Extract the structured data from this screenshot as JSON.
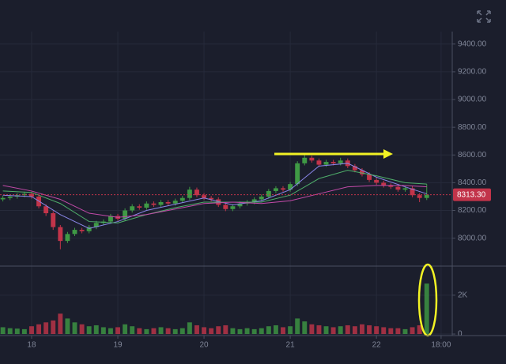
{
  "chart_data": {
    "type": "candlestick",
    "x": [
      -8,
      -6,
      -4,
      -2,
      0,
      2,
      4,
      6,
      8,
      10,
      12,
      14,
      16,
      18,
      20,
      22,
      24,
      26,
      28,
      30,
      32,
      34,
      36,
      38,
      40,
      42,
      44,
      46,
      48,
      50,
      52,
      54,
      56,
      58,
      60,
      62,
      64,
      66,
      68,
      70,
      72,
      74,
      76,
      78,
      80,
      82,
      84,
      86,
      88,
      90,
      92,
      94,
      96,
      98,
      100,
      102,
      104,
      106,
      108,
      110
    ],
    "open": [
      8280,
      8290,
      8300,
      8310,
      8320,
      8300,
      8230,
      8180,
      8080,
      7980,
      8030,
      8060,
      8050,
      8080,
      8110,
      8120,
      8160,
      8140,
      8200,
      8230,
      8220,
      8250,
      8240,
      8260,
      8250,
      8270,
      8290,
      8350,
      8310,
      8290,
      8280,
      8240,
      8210,
      8230,
      8250,
      8260,
      8280,
      8300,
      8340,
      8360,
      8350,
      8390,
      8540,
      8580,
      8560,
      8530,
      8550,
      8540,
      8560,
      8520,
      8490,
      8460,
      8420,
      8400,
      8380,
      8370,
      8350,
      8360,
      8310,
      8290
    ],
    "high": [
      8305,
      8315,
      8325,
      8335,
      8335,
      8315,
      8245,
      8195,
      8095,
      8045,
      8075,
      8075,
      8095,
      8125,
      8135,
      8175,
      8175,
      8215,
      8245,
      8245,
      8265,
      8265,
      8275,
      8275,
      8285,
      8305,
      8370,
      8365,
      8325,
      8305,
      8295,
      8255,
      8245,
      8265,
      8275,
      8295,
      8315,
      8355,
      8375,
      8375,
      8405,
      8555,
      8600,
      8595,
      8575,
      8565,
      8565,
      8580,
      8575,
      8535,
      8505,
      8475,
      8435,
      8415,
      8395,
      8385,
      8375,
      8375,
      8325,
      8390
    ],
    "low": [
      8265,
      8275,
      8285,
      8295,
      8285,
      8215,
      8160,
      8060,
      7920,
      7965,
      8015,
      8035,
      8035,
      8065,
      8095,
      8105,
      8125,
      8125,
      8185,
      8205,
      8205,
      8225,
      8225,
      8235,
      8235,
      8255,
      8275,
      8295,
      8275,
      8265,
      8225,
      8195,
      8195,
      8215,
      8235,
      8245,
      8265,
      8285,
      8325,
      8335,
      8335,
      8375,
      8525,
      8545,
      8515,
      8515,
      8525,
      8525,
      8505,
      8475,
      8445,
      8405,
      8385,
      8365,
      8355,
      8335,
      8335,
      8295,
      8260,
      8275
    ],
    "close": [
      8290,
      8300,
      8310,
      8320,
      8300,
      8230,
      8180,
      8080,
      7980,
      8030,
      8060,
      8050,
      8080,
      8110,
      8120,
      8160,
      8140,
      8200,
      8230,
      8220,
      8250,
      8240,
      8260,
      8250,
      8270,
      8290,
      8350,
      8310,
      8290,
      8280,
      8240,
      8210,
      8230,
      8250,
      8260,
      8280,
      8300,
      8340,
      8360,
      8350,
      8390,
      8540,
      8580,
      8560,
      8530,
      8550,
      8540,
      8560,
      8520,
      8490,
      8460,
      8420,
      8400,
      8380,
      8370,
      8350,
      8360,
      8310,
      8290,
      8313.3
    ],
    "volume": [
      350,
      300,
      280,
      250,
      400,
      500,
      600,
      700,
      1050,
      800,
      600,
      500,
      400,
      450,
      350,
      300,
      350,
      500,
      400,
      300,
      250,
      300,
      350,
      300,
      250,
      300,
      600,
      450,
      350,
      300,
      400,
      450,
      300,
      250,
      300,
      250,
      300,
      400,
      450,
      350,
      400,
      800,
      650,
      500,
      450,
      400,
      350,
      400,
      450,
      400,
      500,
      450,
      400,
      350,
      300,
      300,
      250,
      350,
      450,
      2600
    ],
    "up_color": "#3f9a45",
    "down_color": "#c2344a",
    "moving_averages": [
      {
        "color": "#8a86e8",
        "x": [
          -8,
          0,
          8,
          16,
          24,
          32,
          40,
          48,
          56,
          64,
          72,
          80,
          88,
          96,
          104,
          110
        ],
        "values": [
          8310,
          8300,
          8170,
          8070,
          8120,
          8200,
          8245,
          8290,
          8240,
          8270,
          8350,
          8520,
          8540,
          8440,
          8370,
          8320
        ]
      },
      {
        "color": "#4fae6a",
        "x": [
          -8,
          0,
          8,
          16,
          24,
          32,
          40,
          48,
          56,
          64,
          72,
          80,
          88,
          96,
          104,
          110
        ],
        "values": [
          8340,
          8330,
          8250,
          8120,
          8110,
          8170,
          8220,
          8260,
          8260,
          8260,
          8310,
          8430,
          8490,
          8450,
          8400,
          8390
        ]
      },
      {
        "color": "#c24aa8",
        "x": [
          -8,
          0,
          8,
          16,
          24,
          32,
          40,
          48,
          56,
          64,
          72,
          80,
          88,
          96,
          104,
          110
        ],
        "values": [
          8380,
          8340,
          8280,
          8180,
          8150,
          8170,
          8210,
          8250,
          8260,
          8250,
          8270,
          8320,
          8370,
          8380,
          8380,
          8370
        ]
      }
    ],
    "last_price": {
      "value": 8313.3,
      "label": "8313.30"
    },
    "xlim": [
      -8.8,
      117.1
    ],
    "xticks": [
      {
        "value": 0,
        "label": "18"
      },
      {
        "value": 24,
        "label": "19"
      },
      {
        "value": 48,
        "label": "20"
      },
      {
        "value": 72,
        "label": "21"
      },
      {
        "value": 96,
        "label": "22"
      },
      {
        "value": 114,
        "label": "18:00"
      }
    ],
    "ylim": [
      7810,
      9490
    ],
    "yticks": [
      {
        "value": 8000,
        "label": "8000.00"
      },
      {
        "value": 8200,
        "label": "8200.00"
      },
      {
        "value": 8400,
        "label": "8400.00"
      },
      {
        "value": 8600,
        "label": "8600.00"
      },
      {
        "value": 8800,
        "label": "8800.00"
      },
      {
        "value": 9000,
        "label": "9000.00"
      },
      {
        "value": 9200,
        "label": "9200.00"
      },
      {
        "value": 9400,
        "label": "9400.00"
      }
    ],
    "y2lim": [
      -80,
      3500
    ],
    "y2ticks": [
      0,
      {
        "value": 2000,
        "label": "2K"
      }
    ],
    "grid": true
  }
}
